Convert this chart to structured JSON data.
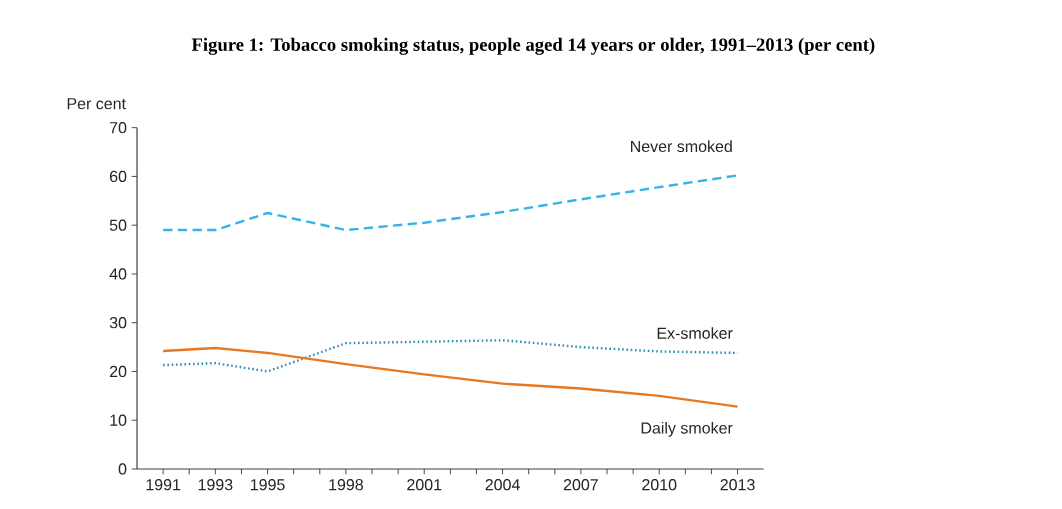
{
  "chart_data": {
    "type": "line",
    "title": "Figure 1: Tobacco smoking status, people aged 14 years or older, 1991–2013 (per cent)",
    "ylabel": "Per cent",
    "x": [
      1991,
      1993,
      1995,
      1998,
      2001,
      2004,
      2007,
      2010,
      2013
    ],
    "series": [
      {
        "name": "Never smoked",
        "color": "#33b5e8",
        "line_style": "dashed",
        "values": [
          49,
          49,
          52.5,
          49,
          50.5,
          52.7,
          55.3,
          57.8,
          60.2
        ]
      },
      {
        "name": "Ex-smoker",
        "color": "#2e8fb3",
        "line_style": "dotted",
        "values": [
          21.3,
          21.7,
          20,
          25.8,
          26.1,
          26.4,
          25,
          24.1,
          23.8
        ]
      },
      {
        "name": "Daily smoker",
        "color": "#e87722",
        "line_style": "solid",
        "values": [
          24.2,
          24.8,
          23.8,
          21.5,
          19.4,
          17.5,
          16.5,
          15.0,
          12.8
        ]
      }
    ],
    "xlim": [
      1990,
      2014
    ],
    "xticks": [
      1991,
      {
        "value": 1992,
        "label": null
      },
      1993,
      {
        "value": 1994,
        "label": null
      },
      1995,
      {
        "value": 1996,
        "label": null
      },
      {
        "value": 1997,
        "label": null
      },
      1998,
      {
        "value": 1999,
        "label": null
      },
      {
        "value": 2000,
        "label": null
      },
      2001,
      {
        "value": 2002,
        "label": null
      },
      {
        "value": 2003,
        "label": null
      },
      2004,
      {
        "value": 2005,
        "label": null
      },
      {
        "value": 2006,
        "label": null
      },
      2007,
      {
        "value": 2008,
        "label": null
      },
      {
        "value": 2009,
        "label": null
      },
      2010,
      {
        "value": 2011,
        "label": null
      },
      {
        "value": 2012,
        "label": null
      },
      2013
    ],
    "ylim": [
      0,
      70
    ],
    "yticks": [
      0,
      10,
      20,
      30,
      40,
      50,
      60,
      70
    ],
    "grid": false
  }
}
